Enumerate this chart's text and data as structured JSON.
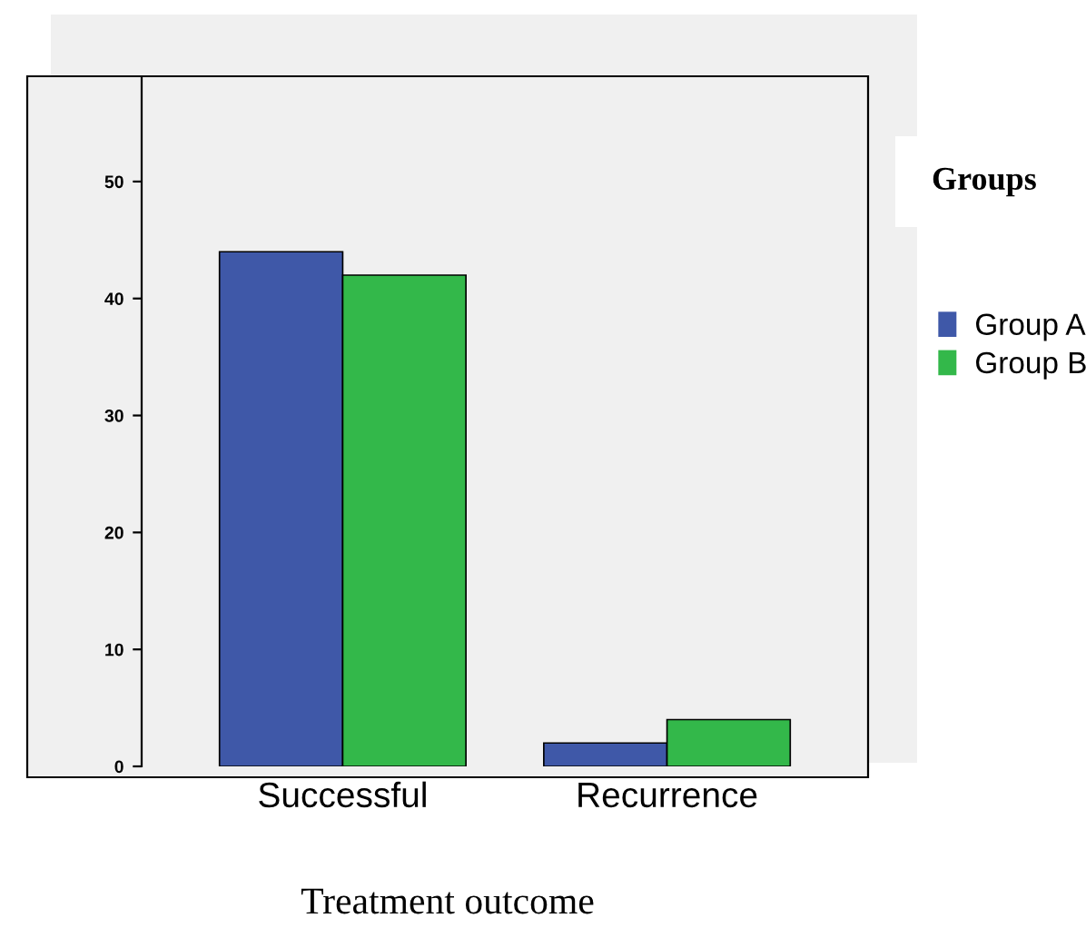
{
  "chart_data": {
    "type": "bar",
    "xlabel": "Treatment outcome",
    "legend_title": "Groups",
    "categories": [
      "Successful",
      "Recurrence"
    ],
    "series": [
      {
        "name": "Group A",
        "color": "#3f58a8",
        "values": [
          44,
          2
        ]
      },
      {
        "name": "Group B",
        "color": "#33b84a",
        "values": [
          42,
          4
        ]
      }
    ],
    "ylim": [
      0,
      59
    ],
    "yticks": [
      0,
      10,
      20,
      30,
      40,
      50
    ],
    "grid": false,
    "legend": "right"
  }
}
